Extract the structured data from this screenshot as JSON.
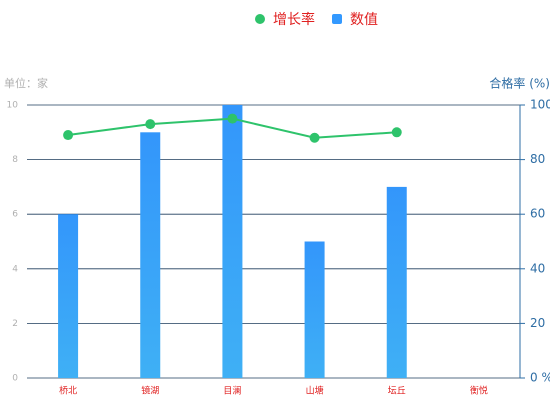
{
  "chart_data": {
    "type": "bar",
    "categories": [
      "桥北",
      "镜湖",
      "目澜",
      "山塘",
      "坛丘",
      "衡悦"
    ],
    "y_label": "单位：家",
    "y2_label": "合格率 (%)",
    "series": [
      {
        "name": "增长率",
        "type": "line",
        "axis": "y2",
        "color": "#2ec36b",
        "values": [
          89,
          93,
          95,
          88,
          90,
          null
        ]
      },
      {
        "name": "数值",
        "type": "bar",
        "color": "#3399ff",
        "values": [
          6,
          9,
          10,
          5,
          7,
          null
        ]
      }
    ],
    "ylim": [
      0,
      10
    ],
    "yticks": [
      0,
      2,
      4,
      6,
      8,
      10
    ],
    "y2lim": [
      0,
      100
    ],
    "y2ticks": [
      {
        "value": 0,
        "label": "0 %"
      },
      20,
      40,
      60,
      80,
      100
    ],
    "grid": true
  }
}
